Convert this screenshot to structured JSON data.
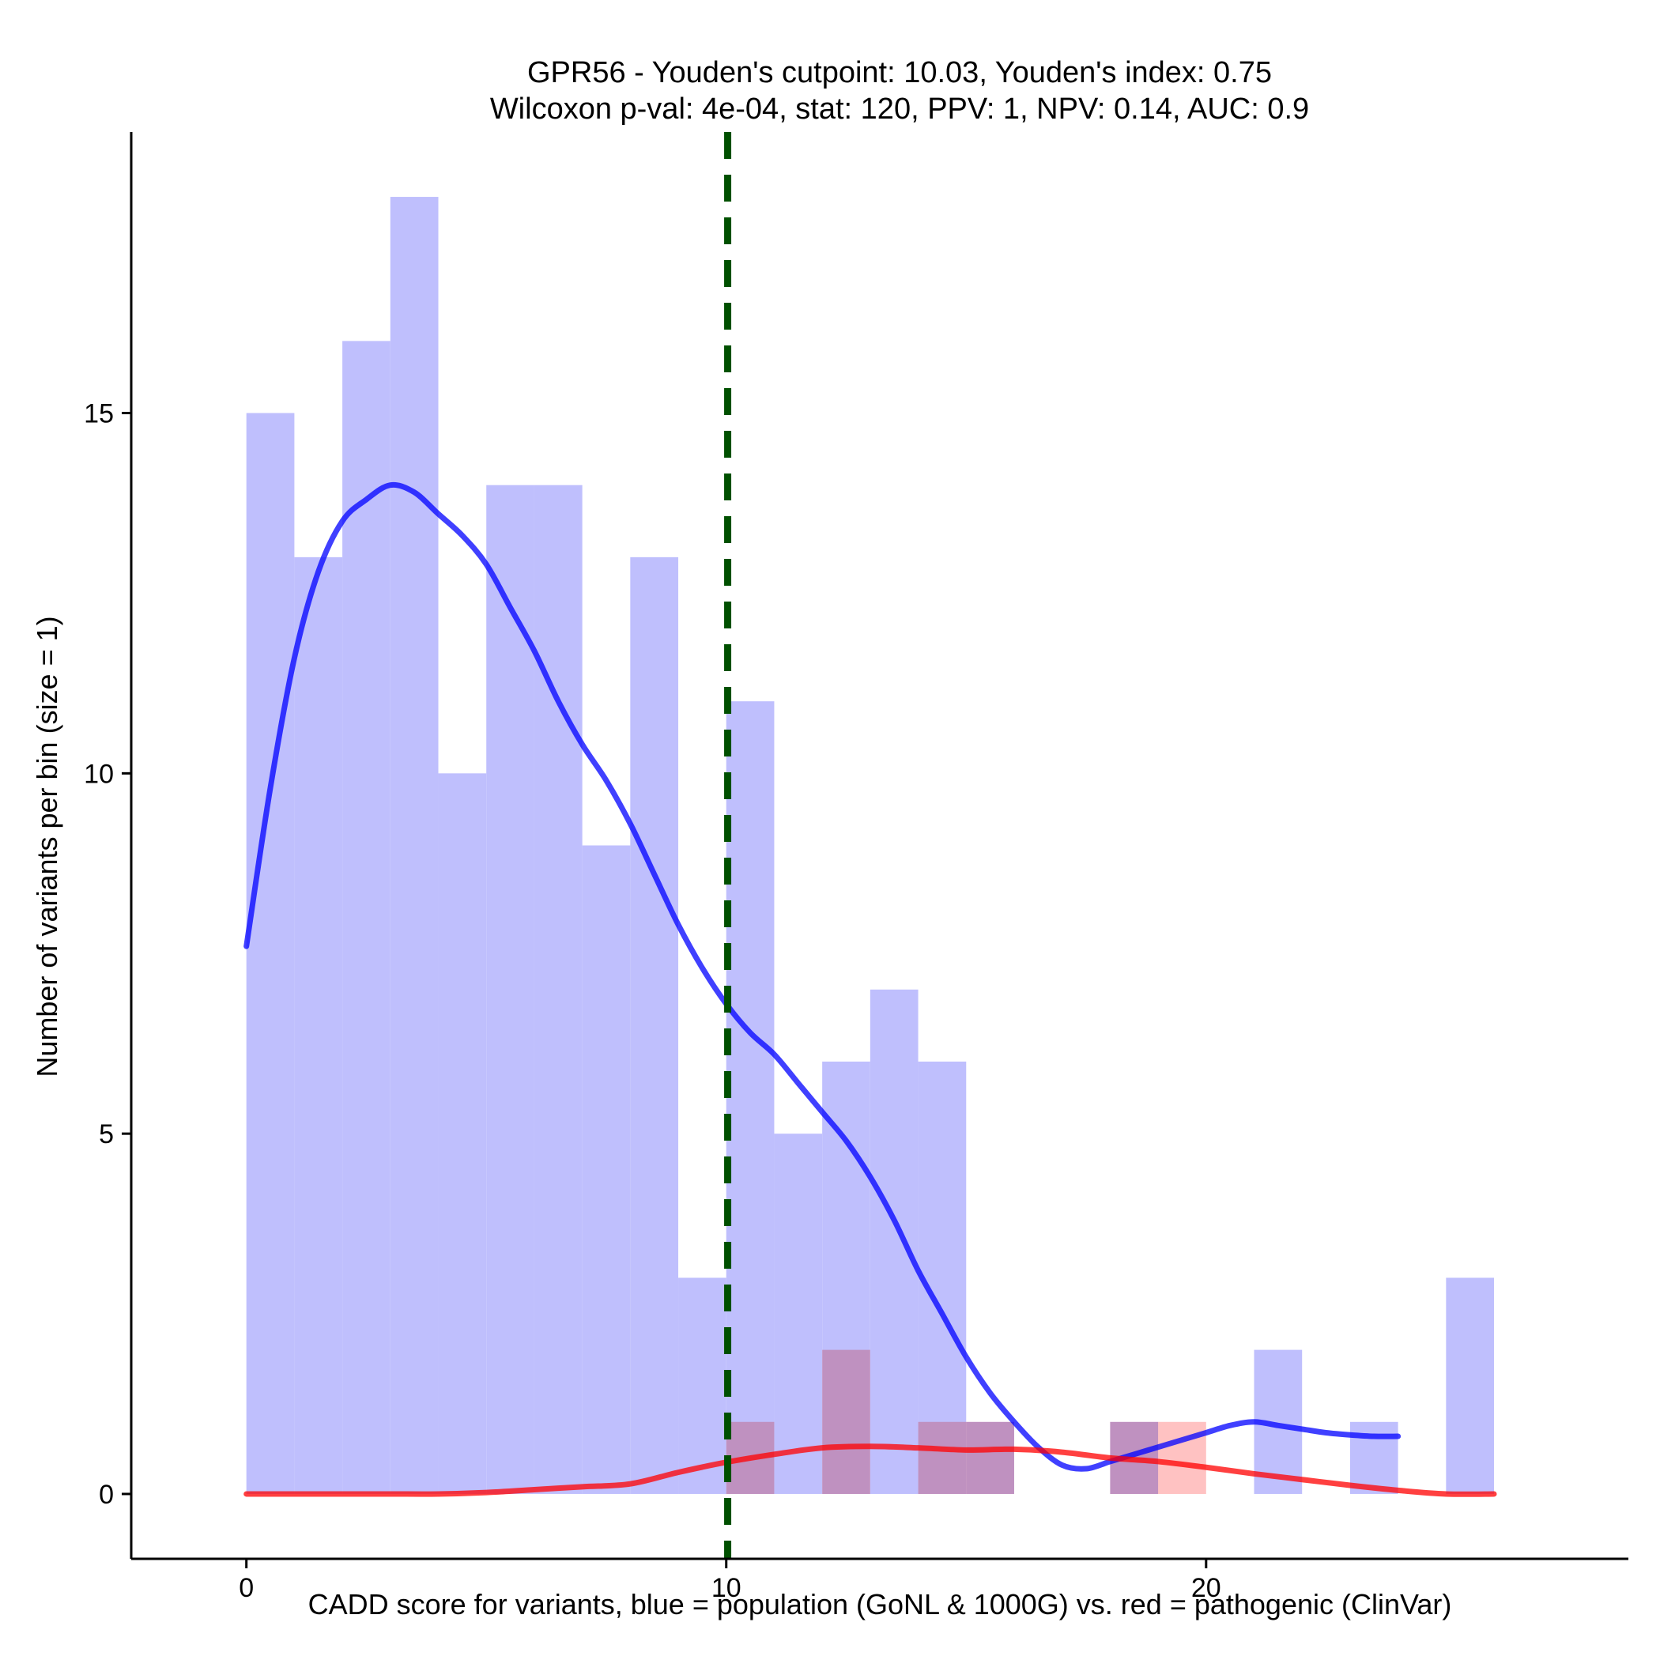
{
  "chart_data": {
    "type": "histogram",
    "title": [
      "GPR56 - Youden's cutpoint: 10.03, Youden's index: 0.75",
      "Wilcoxon p-val: 4e-04, stat: 120, PPV: 1, NPV: 0.14, AUC: 0.9"
    ],
    "xlabel": "CADD score for variants, blue = population (GoNL & 1000G) vs. red = pathogenic (ClinVar)",
    "ylabel": "Number of variants per bin (size = 1)",
    "xlim": [
      -2.4,
      28.8
    ],
    "ylim": [
      -0.9,
      18.9
    ],
    "xticks": [
      0,
      10,
      20
    ],
    "xtick_labels": [
      "0",
      "10",
      "20"
    ],
    "yticks": [
      0,
      5,
      10,
      15
    ],
    "ytick_labels": [
      "0",
      "5",
      "10",
      "15"
    ],
    "bin_width": 1,
    "cutpoint": 10.03,
    "series": [
      {
        "name": "population",
        "color": "#0000ff",
        "bar_color": "#bfbffd",
        "bins": [
          {
            "x": 0,
            "count": 15
          },
          {
            "x": 1,
            "count": 13
          },
          {
            "x": 2,
            "count": 16
          },
          {
            "x": 3,
            "count": 18
          },
          {
            "x": 4,
            "count": 10
          },
          {
            "x": 5,
            "count": 14
          },
          {
            "x": 6,
            "count": 14
          },
          {
            "x": 7,
            "count": 9
          },
          {
            "x": 8,
            "count": 13
          },
          {
            "x": 9,
            "count": 3
          },
          {
            "x": 10,
            "count": 11
          },
          {
            "x": 11,
            "count": 5
          },
          {
            "x": 12,
            "count": 6
          },
          {
            "x": 13,
            "count": 7
          },
          {
            "x": 14,
            "count": 6
          },
          {
            "x": 15,
            "count": 1
          },
          {
            "x": 18,
            "count": 1
          },
          {
            "x": 21,
            "count": 2
          },
          {
            "x": 23,
            "count": 1
          },
          {
            "x": 25,
            "count": 3
          }
        ],
        "density": [
          [
            0,
            7.6
          ],
          [
            0.5,
            9.8
          ],
          [
            1,
            11.6
          ],
          [
            1.5,
            12.8
          ],
          [
            2,
            13.5
          ],
          [
            2.5,
            13.8
          ],
          [
            3,
            14.0
          ],
          [
            3.5,
            13.9
          ],
          [
            4,
            13.6
          ],
          [
            4.5,
            13.3
          ],
          [
            5,
            12.9
          ],
          [
            5.5,
            12.3
          ],
          [
            6,
            11.7
          ],
          [
            6.5,
            11.0
          ],
          [
            7,
            10.4
          ],
          [
            7.5,
            9.9
          ],
          [
            8,
            9.3
          ],
          [
            8.5,
            8.6
          ],
          [
            9,
            7.9
          ],
          [
            9.5,
            7.3
          ],
          [
            10,
            6.8
          ],
          [
            10.5,
            6.4
          ],
          [
            11,
            6.1
          ],
          [
            11.5,
            5.7
          ],
          [
            12,
            5.3
          ],
          [
            12.5,
            4.9
          ],
          [
            13,
            4.4
          ],
          [
            13.5,
            3.8
          ],
          [
            14,
            3.1
          ],
          [
            14.5,
            2.5
          ],
          [
            15,
            1.9
          ],
          [
            15.5,
            1.4
          ],
          [
            16,
            1.0
          ],
          [
            16.5,
            0.65
          ],
          [
            17,
            0.4
          ],
          [
            17.5,
            0.35
          ],
          [
            18,
            0.45
          ],
          [
            18.5,
            0.55
          ],
          [
            19,
            0.65
          ],
          [
            19.5,
            0.75
          ],
          [
            20,
            0.85
          ],
          [
            20.5,
            0.95
          ],
          [
            21,
            1.0
          ],
          [
            21.5,
            0.95
          ],
          [
            22,
            0.9
          ],
          [
            22.5,
            0.85
          ],
          [
            23,
            0.82
          ],
          [
            23.5,
            0.8
          ],
          [
            24,
            0.8
          ]
        ]
      },
      {
        "name": "pathogenic",
        "color": "#ff0000",
        "bar_color": "#ffbfbf",
        "bins": [
          {
            "x": 10,
            "count": 1
          },
          {
            "x": 12,
            "count": 2
          },
          {
            "x": 14,
            "count": 1
          },
          {
            "x": 15,
            "count": 1
          },
          {
            "x": 18,
            "count": 1
          },
          {
            "x": 19,
            "count": 1
          }
        ],
        "density": [
          [
            0,
            0
          ],
          [
            1,
            0
          ],
          [
            2,
            0
          ],
          [
            3,
            0
          ],
          [
            4,
            0
          ],
          [
            5,
            0.02
          ],
          [
            6,
            0.06
          ],
          [
            7,
            0.1
          ],
          [
            8,
            0.14
          ],
          [
            9,
            0.3
          ],
          [
            10,
            0.44
          ],
          [
            11,
            0.55
          ],
          [
            12,
            0.64
          ],
          [
            13,
            0.66
          ],
          [
            14,
            0.64
          ],
          [
            15,
            0.61
          ],
          [
            16,
            0.62
          ],
          [
            17,
            0.58
          ],
          [
            18,
            0.5
          ],
          [
            19,
            0.45
          ],
          [
            20,
            0.37
          ],
          [
            21,
            0.28
          ],
          [
            22,
            0.2
          ],
          [
            23,
            0.12
          ],
          [
            24,
            0.05
          ],
          [
            25,
            0.0
          ],
          [
            26,
            0.0
          ]
        ]
      }
    ]
  }
}
